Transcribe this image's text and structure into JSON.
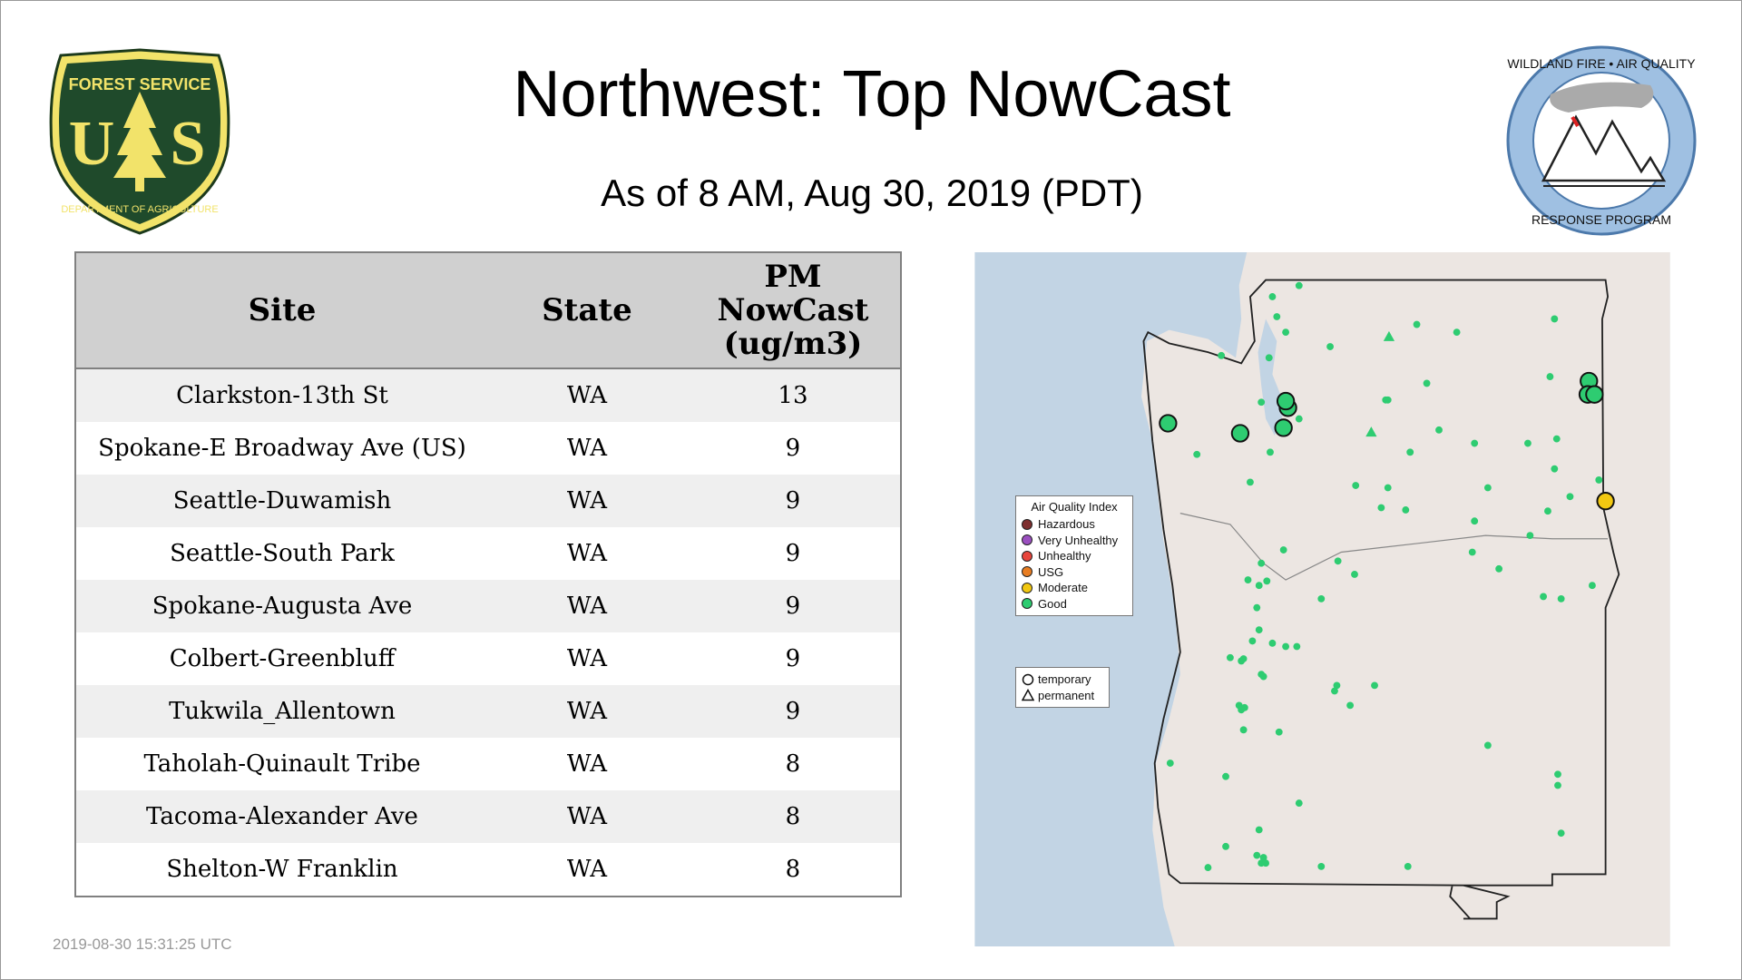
{
  "header": {
    "title": "Northwest: Top NowCast",
    "subtitle": "As of  8 AM, Aug 30, 2019 (PDT)"
  },
  "logos": {
    "usfs": {
      "top_text": "FOREST SERVICE",
      "letters": "U S",
      "bottom_text": "DEPARTMENT OF AGRICULTURE"
    },
    "wfaq": {
      "top_text": "WILDLAND FIRE • AIR QUALITY",
      "bottom_text": "RESPONSE PROGRAM"
    }
  },
  "table": {
    "columns": [
      "Site",
      "State",
      "PM NowCast (ug/m3)"
    ],
    "column_lines": [
      [
        "Site"
      ],
      [
        "State"
      ],
      [
        "PM",
        "NowCast",
        "(ug/m3)"
      ]
    ],
    "rows": [
      [
        "Clarkston-13th St",
        "WA",
        "13"
      ],
      [
        "Spokane-E Broadway Ave (US)",
        "WA",
        "9"
      ],
      [
        "Seattle-Duwamish",
        "WA",
        "9"
      ],
      [
        "Seattle-South Park",
        "WA",
        "9"
      ],
      [
        "Spokane-Augusta Ave",
        "WA",
        "9"
      ],
      [
        "Colbert-Greenbluff",
        "WA",
        "9"
      ],
      [
        "Tukwila_Allentown",
        "WA",
        "9"
      ],
      [
        "Taholah-Quinault Tribe",
        "WA",
        "8"
      ],
      [
        "Tacoma-Alexander Ave",
        "WA",
        "8"
      ],
      [
        "Shelton-W Franklin",
        "WA",
        "8"
      ]
    ]
  },
  "map": {
    "legend": {
      "title": "Air Quality Index",
      "items": [
        {
          "label": "Hazardous",
          "color": "#7e2f2f"
        },
        {
          "label": "Very Unhealthy",
          "color": "#9b4fc0"
        },
        {
          "label": "Unhealthy",
          "color": "#e8453c"
        },
        {
          "label": "USG",
          "color": "#e87d22"
        },
        {
          "label": "Moderate",
          "color": "#f2c811"
        },
        {
          "label": "Good",
          "color": "#2ecc71"
        }
      ]
    },
    "shape_legend": {
      "items": [
        {
          "label": "temporary",
          "shape": "circle"
        },
        {
          "label": "permanent",
          "shape": "triangle"
        }
      ]
    },
    "colors": {
      "ocean": "#c2d4e4",
      "land": "#ece6e2",
      "good": "#2ecc71",
      "moderate": "#f2c811"
    }
  },
  "footer": {
    "timestamp": "2019-08-30 15:31:25 UTC"
  }
}
